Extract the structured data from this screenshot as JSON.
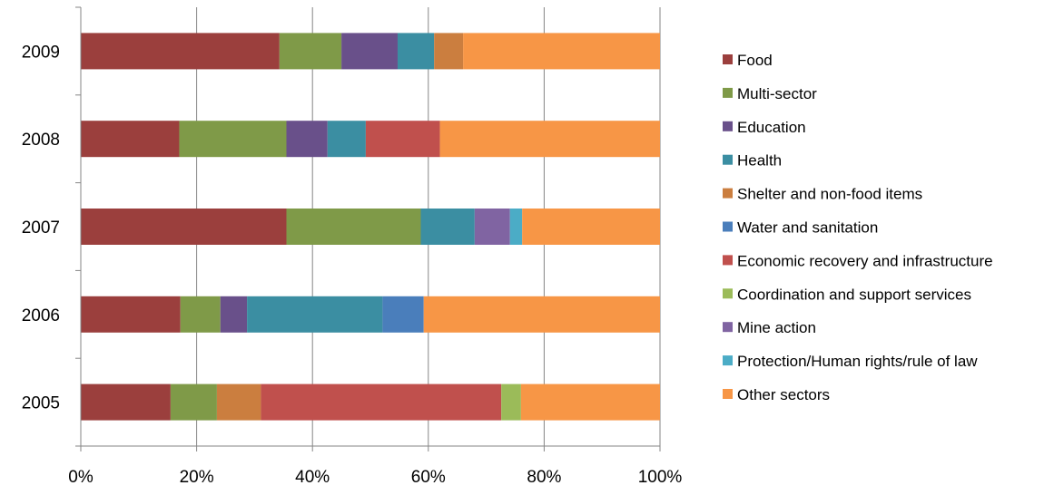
{
  "chart_data": {
    "type": "bar",
    "orientation": "horizontal",
    "stacked": "percent",
    "title": "",
    "xlabel": "",
    "ylabel": "",
    "xlim": [
      0,
      100
    ],
    "x_tick_labels": [
      "0%",
      "20%",
      "40%",
      "60%",
      "80%",
      "100%"
    ],
    "categories": [
      "2009",
      "2008",
      "2007",
      "2006",
      "2005"
    ],
    "grid": "vertical",
    "legend_position": "right",
    "series": [
      {
        "name": "Food",
        "color": "#9B3F3D",
        "values": [
          34.3,
          17.0,
          35.5,
          17.2,
          15.5
        ]
      },
      {
        "name": "Multi-sector",
        "color": "#7F9A48",
        "values": [
          10.7,
          18.5,
          23.2,
          6.9,
          8.0
        ]
      },
      {
        "name": "Education",
        "color": "#69508A",
        "values": [
          9.7,
          7.1,
          0,
          4.6,
          0
        ]
      },
      {
        "name": "Health",
        "color": "#3B8EA2",
        "values": [
          6.3,
          6.6,
          9.3,
          23.4,
          0
        ]
      },
      {
        "name": "Shelter and non-food items",
        "color": "#CB7E3F",
        "values": [
          5.0,
          0,
          0,
          0,
          7.6
        ]
      },
      {
        "name": "Water and sanitation",
        "color": "#4A7EBB",
        "values": [
          0,
          0,
          0,
          7.1,
          0
        ]
      },
      {
        "name": "Economic recovery and infrastructure",
        "color": "#C0504D",
        "values": [
          0,
          12.8,
          0,
          0,
          41.5
        ]
      },
      {
        "name": "Coordination and support services",
        "color": "#9BBB59",
        "values": [
          0,
          0,
          0,
          0,
          3.4
        ]
      },
      {
        "name": "Mine action",
        "color": "#8064A2",
        "values": [
          0,
          0,
          6.1,
          0,
          0
        ]
      },
      {
        "name": "Protection/Human rights/rule of law",
        "color": "#4BACC6",
        "values": [
          0,
          0,
          2.1,
          0,
          0
        ]
      },
      {
        "name": "Other sectors",
        "color": "#F79646",
        "values": [
          34.0,
          38.0,
          23.8,
          40.8,
          24.0
        ]
      }
    ]
  }
}
